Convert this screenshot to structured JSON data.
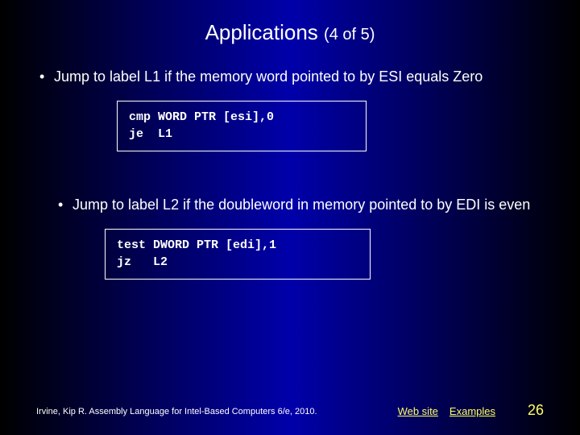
{
  "title": {
    "main": "Applications",
    "sub": "(4 of 5)"
  },
  "bullets": {
    "b1": "Jump to label L1 if the memory word pointed to by ESI equals Zero",
    "b2": "Jump to label L2 if the doubleword in memory pointed to by EDI is even"
  },
  "code": {
    "box1": "cmp WORD PTR [esi],0\nje  L1",
    "box2": "test DWORD PTR [edi],1\njz   L2"
  },
  "footer": {
    "citation": "Irvine, Kip R. Assembly Language for Intel-Based Computers 6/e, 2010.",
    "link1": "Web site",
    "link2": "Examples",
    "page": "26"
  },
  "styling": {
    "background_gradient": [
      "#000000",
      "#000033",
      "#0000aa",
      "#000033",
      "#000000"
    ],
    "text_color": "#ffffff",
    "link_color": "#ffff66",
    "title_fontsize": 26,
    "body_fontsize": 18,
    "code_fontsize": 15,
    "footer_fontsize": 11,
    "code_border_color": "#ffffff"
  }
}
